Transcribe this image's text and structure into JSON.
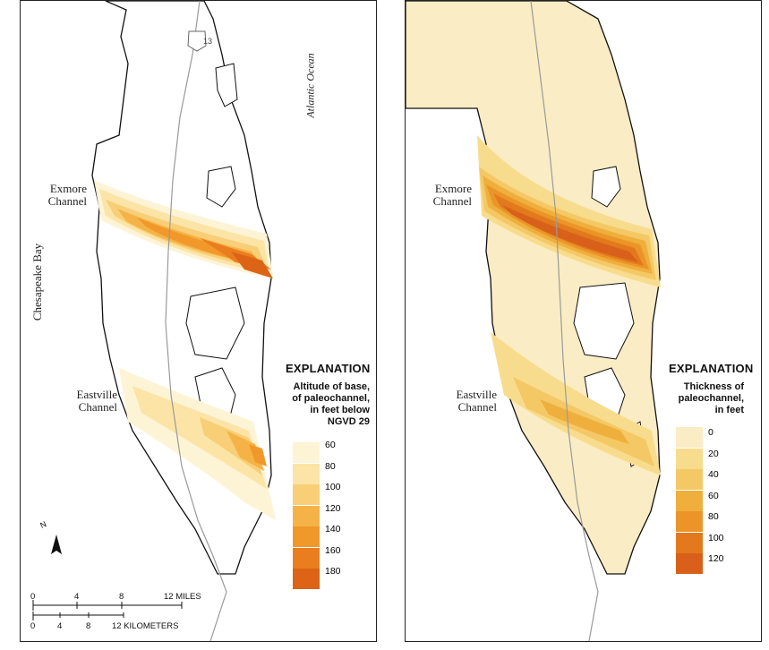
{
  "left_map": {
    "labels": {
      "exmore": [
        "Exmore",
        "Channel"
      ],
      "eastville": [
        "Eastville",
        "Channel"
      ],
      "chesapeake": "Chesapeake Bay",
      "atlantic": "Atlantic Ocean",
      "route": "13"
    },
    "explanation": {
      "title": "EXPLANATION",
      "description": [
        "Altitude of base,",
        "of paleochannel,",
        "in feet below",
        "NGVD 29"
      ],
      "values": [
        "60",
        "80",
        "100",
        "120",
        "140",
        "160",
        "180"
      ],
      "colors": [
        "#fdf4d6",
        "#fbe4a6",
        "#f8ce77",
        "#f5b347",
        "#f1982a",
        "#ea7e1f",
        "#dd6416"
      ]
    },
    "north_arrow": "N",
    "scale": {
      "miles_ticks": [
        "0",
        "4",
        "8",
        "12 MILES"
      ],
      "km_ticks": [
        "0",
        "4",
        "8",
        "12 KILOMETERS"
      ]
    }
  },
  "right_map": {
    "labels": {
      "exmore": [
        "Exmore",
        "Channel"
      ],
      "eastville": [
        "Eastville",
        "Channel"
      ]
    },
    "explanation": {
      "title": "EXPLANATION",
      "description": [
        "Thickness of",
        "paleochannel,",
        "in feet"
      ],
      "values": [
        "0",
        "20",
        "40",
        "60",
        "80",
        "100",
        "120"
      ],
      "colors": [
        "#faecc4",
        "#f8dc8d",
        "#f4c865",
        "#efaf3d",
        "#eb9528",
        "#e27a1d",
        "#d8601a"
      ]
    }
  }
}
